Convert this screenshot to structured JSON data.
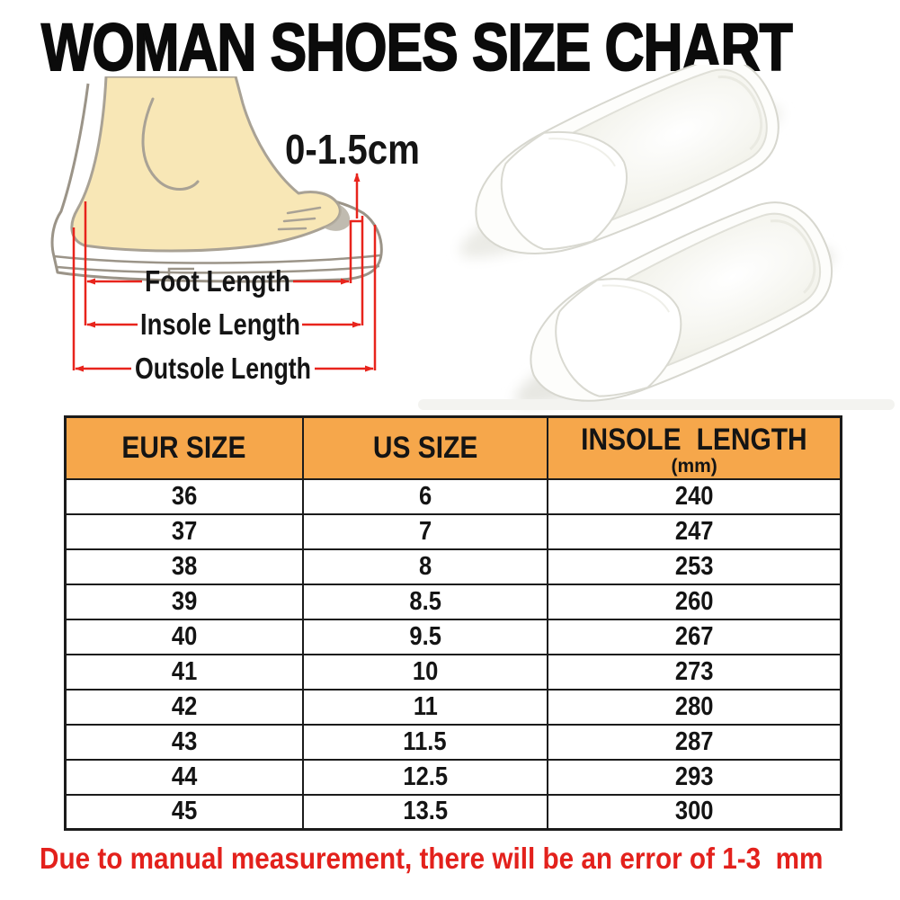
{
  "title": "WOMAN SHOES SIZE CHART",
  "diagram": {
    "toe_allowance_label": "0-1.5cm",
    "foot_length_label": "Foot Length",
    "insole_length_label": "Insole Length",
    "outsole_length_label": "Outsole Length"
  },
  "table": {
    "headers": {
      "eur": "EUR SIZE",
      "us": "US SIZE",
      "insole": "INSOLE LENGTH",
      "insole_unit": "(mm)"
    },
    "rows": [
      [
        "36",
        "6",
        "240"
      ],
      [
        "37",
        "7",
        "247"
      ],
      [
        "38",
        "8",
        "253"
      ],
      [
        "39",
        "8.5",
        "260"
      ],
      [
        "40",
        "9.5",
        "267"
      ],
      [
        "41",
        "10",
        "273"
      ],
      [
        "42",
        "11",
        "280"
      ],
      [
        "43",
        "11.5",
        "287"
      ],
      [
        "44",
        "12.5",
        "293"
      ],
      [
        "45",
        "13.5",
        "300"
      ]
    ]
  },
  "footer": {
    "note": "Due to manual measurement, there will be an error of 1-3  mm"
  },
  "chart_data": {
    "type": "table",
    "title": "WOMAN SHOES SIZE CHART",
    "columns": [
      "EUR SIZE",
      "US SIZE",
      "INSOLE LENGTH (mm)"
    ],
    "rows": [
      [
        36,
        6,
        240
      ],
      [
        37,
        7,
        247
      ],
      [
        38,
        8,
        253
      ],
      [
        39,
        8.5,
        260
      ],
      [
        40,
        9.5,
        267
      ],
      [
        41,
        10,
        273
      ],
      [
        42,
        11,
        280
      ],
      [
        43,
        11.5,
        287
      ],
      [
        44,
        12.5,
        293
      ],
      [
        45,
        13.5,
        300
      ]
    ],
    "annotations": [
      "0-1.5cm toe allowance",
      "Foot Length",
      "Insole Length",
      "Outsole Length"
    ],
    "footnote": "Due to manual measurement, there will be an error of 1-3 mm"
  },
  "colors": {
    "header_bg": "#F6A74B",
    "table_border": "#1B1B1B",
    "note_red": "#E3211C",
    "measure_red": "#E8241C",
    "foot_skin": "#F8E7B6",
    "sketch_outline": "#9B9488"
  }
}
